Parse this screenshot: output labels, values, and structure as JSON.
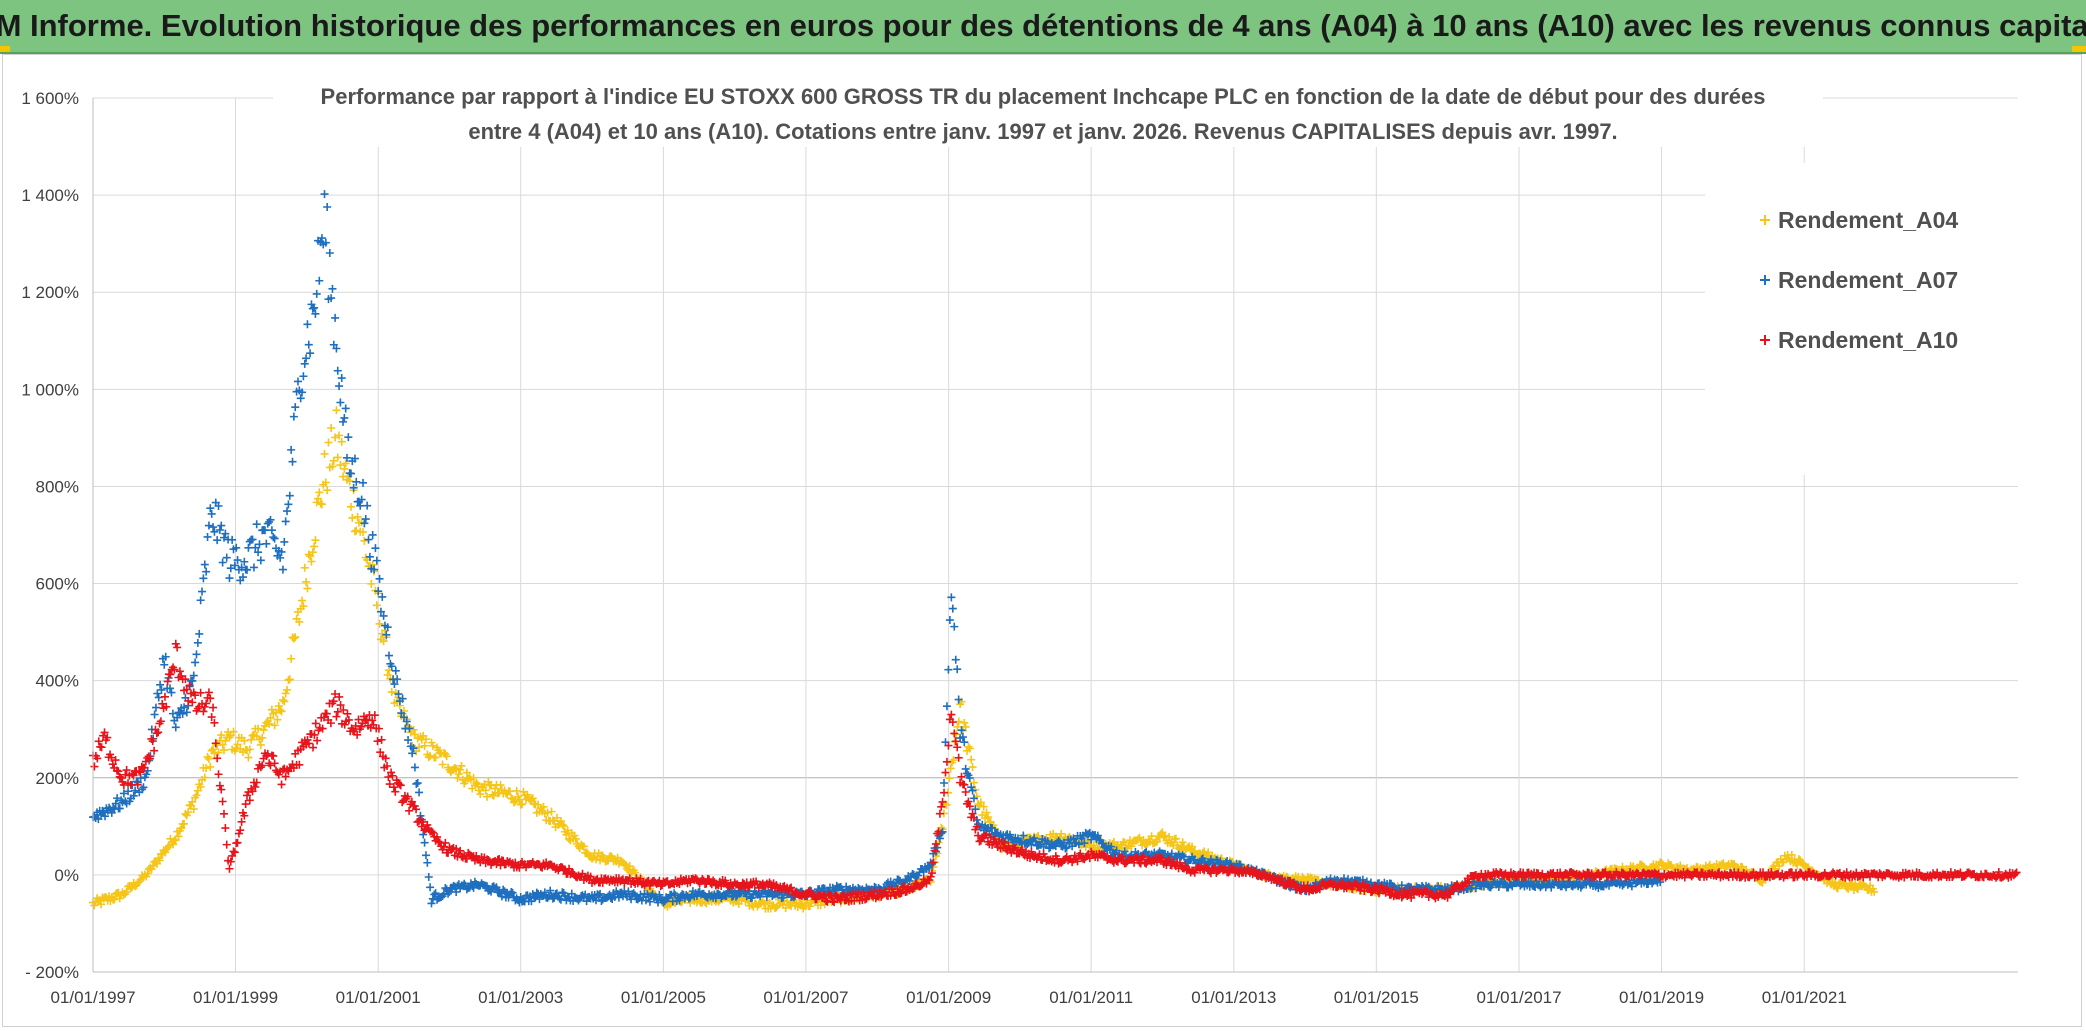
{
  "banner": {
    "title": "ADAM Informe. Evolution historique des performances en euros pour des détentions de 4 ans (A04) à 10 ans (A10) avec les revenus connus capitalisés"
  },
  "chart_data": {
    "type": "scatter",
    "title_line1": "Performance par rapport à l'indice EU STOXX 600 GROSS TR  du placement Inchcape PLC en fonction de la date de début pour des durées",
    "title_line2": "entre 4 (A04) et 10 ans (A10). Cotations entre janv. 1997 et janv. 2026. Revenus CAPITALISES depuis avr. 1997.",
    "xlabel": "",
    "ylabel": "",
    "ylim": [
      -200,
      1600
    ],
    "y_ticks": [
      {
        "value": 1600,
        "label": "1 600%"
      },
      {
        "value": 1400,
        "label": "1 400%"
      },
      {
        "value": 1200,
        "label": "1 200%"
      },
      {
        "value": 1000,
        "label": "1 000%"
      },
      {
        "value": 800,
        "label": "800%"
      },
      {
        "value": 600,
        "label": "600%"
      },
      {
        "value": 400,
        "label": "400%"
      },
      {
        "value": 200,
        "label": "200%"
      },
      {
        "value": 0,
        "label": "0%"
      },
      {
        "value": -200,
        "label": "- 200%"
      }
    ],
    "xlim": [
      "1997-01-01",
      "2024-01-01"
    ],
    "x_ticks": [
      "01/01/1997",
      "01/01/1999",
      "01/01/2001",
      "01/01/2003",
      "01/01/2005",
      "01/01/2007",
      "01/01/2009",
      "01/01/2011",
      "01/01/2013",
      "01/01/2015",
      "01/01/2017",
      "01/01/2019",
      "01/01/2021"
    ],
    "grid": true,
    "legend_position": "top-right",
    "series": [
      {
        "name": "Rendement_A04",
        "color": "#f5c518",
        "x": [
          "1997-01-01",
          "1997-06-01",
          "1997-10-01",
          "1998-03-01",
          "1998-06-01",
          "1998-09-01",
          "1998-12-01",
          "1999-03-01",
          "1999-06-01",
          "1999-09-01",
          "1999-12-01",
          "2000-02-01",
          "2000-04-01",
          "2000-06-01",
          "2000-08-01",
          "2000-10-01",
          "2001-01-01",
          "2001-04-01",
          "2001-07-01",
          "2002-01-01",
          "2002-06-01",
          "2003-01-01",
          "2003-06-01",
          "2004-01-01",
          "2004-06-01",
          "2005-01-01",
          "2005-06-01",
          "2006-01-01",
          "2006-06-01",
          "2007-01-01",
          "2007-06-01",
          "2008-01-01",
          "2008-06-01",
          "2008-10-01",
          "2008-12-01",
          "2009-03-01",
          "2009-06-01",
          "2009-10-01",
          "2010-03-01",
          "2010-08-01",
          "2011-01-01",
          "2011-06-01",
          "2012-01-01",
          "2012-06-01",
          "2013-01-01",
          "2013-06-01",
          "2014-01-01",
          "2014-06-01",
          "2015-01-01",
          "2015-06-01",
          "2016-01-01",
          "2016-06-01",
          "2017-01-01",
          "2017-06-01",
          "2018-01-01",
          "2018-06-01",
          "2019-01-01",
          "2019-06-01",
          "2020-01-01",
          "2020-06-01",
          "2020-10-01",
          "2021-01-01",
          "2021-06-01",
          "2022-01-01"
        ],
        "values": [
          -60,
          -40,
          0,
          80,
          150,
          250,
          280,
          260,
          300,
          350,
          550,
          700,
          820,
          900,
          800,
          720,
          550,
          350,
          280,
          230,
          180,
          160,
          120,
          40,
          30,
          -60,
          -50,
          -50,
          -60,
          -60,
          -50,
          -40,
          -30,
          -10,
          100,
          350,
          150,
          60,
          70,
          80,
          60,
          60,
          80,
          50,
          20,
          0,
          -10,
          -20,
          -30,
          -30,
          -30,
          -20,
          -10,
          -10,
          0,
          10,
          20,
          10,
          20,
          -10,
          40,
          20,
          -20,
          -30
        ]
      },
      {
        "name": "Rendement_A07",
        "color": "#1f6fbf",
        "x": [
          "1997-01-01",
          "1997-06-01",
          "1997-10-01",
          "1998-01-01",
          "1998-03-01",
          "1998-06-01",
          "1998-09-01",
          "1998-12-01",
          "1999-03-01",
          "1999-06-01",
          "1999-09-01",
          "1999-12-01",
          "2000-02-01",
          "2000-04-01",
          "2000-06-01",
          "2000-08-01",
          "2000-10-01",
          "2001-01-01",
          "2001-04-01",
          "2001-07-01",
          "2001-10-01",
          "2002-01-01",
          "2002-06-01",
          "2003-01-01",
          "2003-06-01",
          "2004-01-01",
          "2004-06-01",
          "2005-01-01",
          "2005-06-01",
          "2006-01-01",
          "2006-06-01",
          "2007-01-01",
          "2007-06-01",
          "2008-01-01",
          "2008-06-01",
          "2008-10-01",
          "2008-12-01",
          "2009-01-15",
          "2009-03-01",
          "2009-06-01",
          "2009-10-01",
          "2010-03-01",
          "2010-08-01",
          "2011-01-01",
          "2011-06-01",
          "2012-01-01",
          "2012-06-01",
          "2013-01-01",
          "2013-06-01",
          "2014-01-01",
          "2014-06-01",
          "2015-01-01",
          "2015-06-01",
          "2016-01-01",
          "2016-06-01",
          "2017-01-01",
          "2017-06-01",
          "2018-01-01",
          "2018-06-01",
          "2019-01-01"
        ],
        "values": [
          120,
          150,
          200,
          450,
          300,
          400,
          750,
          650,
          650,
          700,
          650,
          1050,
          1150,
          1350,
          1100,
          850,
          800,
          600,
          400,
          250,
          -50,
          -30,
          -20,
          -50,
          -40,
          -50,
          -40,
          -50,
          -40,
          -40,
          -40,
          -40,
          -30,
          -30,
          -10,
          20,
          100,
          600,
          300,
          100,
          80,
          70,
          60,
          80,
          40,
          40,
          30,
          20,
          0,
          -30,
          -10,
          -20,
          -30,
          -30,
          -20,
          -20,
          -20,
          -20,
          -20,
          -10
        ]
      },
      {
        "name": "Rendement_A10",
        "color": "#e8141c",
        "x": [
          "1997-01-01",
          "1997-03-01",
          "1997-06-01",
          "1997-09-01",
          "1997-12-01",
          "1998-03-01",
          "1998-06-01",
          "1998-09-01",
          "1998-12-01",
          "1999-03-01",
          "1999-06-01",
          "1999-09-01",
          "1999-12-01",
          "2000-03-01",
          "2000-06-01",
          "2000-09-01",
          "2000-12-01",
          "2001-03-01",
          "2001-06-01",
          "2001-10-01",
          "2002-01-01",
          "2002-06-01",
          "2003-01-01",
          "2003-06-01",
          "2004-01-01",
          "2004-06-01",
          "2005-01-01",
          "2005-06-01",
          "2006-01-01",
          "2006-06-01",
          "2007-01-01",
          "2007-06-01",
          "2008-01-01",
          "2008-06-01",
          "2008-10-01",
          "2008-12-01",
          "2009-01-15",
          "2009-03-01",
          "2009-06-01",
          "2009-10-01",
          "2010-03-01",
          "2010-08-01",
          "2011-01-01",
          "2011-06-01",
          "2012-01-01",
          "2012-06-01",
          "2013-01-01",
          "2013-06-01",
          "2014-01-01",
          "2014-06-01",
          "2015-01-01",
          "2015-06-01",
          "2016-01-01",
          "2016-06-01",
          "2017-01-01",
          "2018-01-01",
          "2019-01-01",
          "2020-01-01",
          "2021-01-01",
          "2022-01-01",
          "2023-01-01",
          "2024-01-01"
        ],
        "values": [
          230,
          280,
          200,
          200,
          300,
          450,
          350,
          350,
          10,
          150,
          250,
          200,
          250,
          300,
          350,
          300,
          330,
          200,
          150,
          80,
          50,
          30,
          20,
          20,
          -10,
          -10,
          -20,
          -10,
          -20,
          -20,
          -40,
          -50,
          -40,
          -30,
          -10,
          150,
          350,
          200,
          80,
          60,
          40,
          30,
          40,
          30,
          30,
          10,
          10,
          0,
          -30,
          -20,
          -30,
          -40,
          -40,
          0,
          0,
          0,
          0,
          0,
          0,
          0,
          0,
          0
        ]
      }
    ]
  }
}
